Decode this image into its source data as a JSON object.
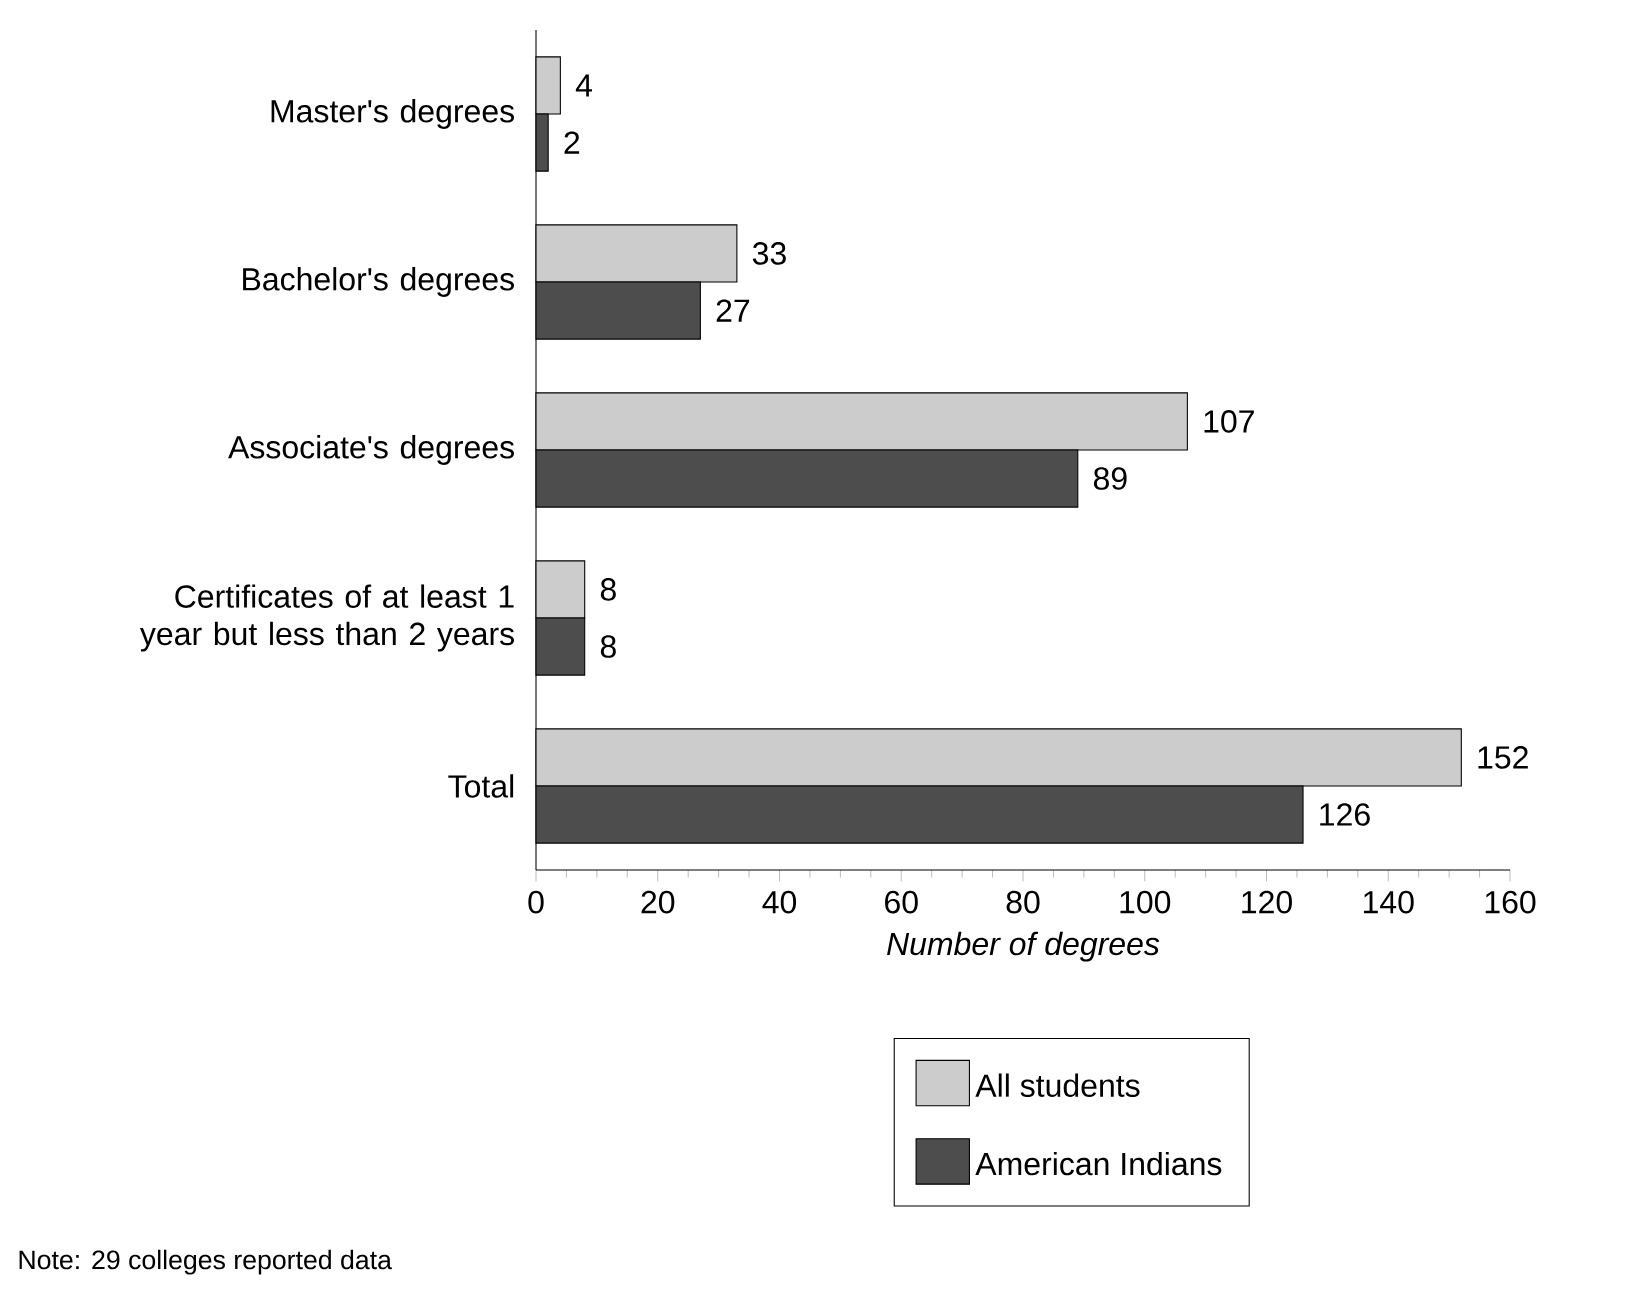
{
  "chart_data": {
    "type": "bar",
    "orientation": "horizontal",
    "xlabel": "Number of degrees",
    "categories": [
      "Master's degrees",
      "Bachelor's degrees",
      "Associate's degrees",
      "Certificates of at least 1 year but less than 2 years",
      "Total"
    ],
    "series": [
      {
        "name": "All students",
        "color": "#cccccc",
        "values": [
          4,
          33,
          107,
          8,
          152
        ]
      },
      {
        "name": "American Indians",
        "color": "#4d4d4d",
        "values": [
          2,
          27,
          89,
          8,
          126
        ]
      }
    ],
    "xlim": [
      0,
      160
    ],
    "xticks": [
      0,
      20,
      40,
      60,
      80,
      100,
      120,
      140,
      160
    ],
    "data_labels": true,
    "legend": "bottom",
    "annotations": [
      "Note: 29 colleges reported data"
    ]
  }
}
